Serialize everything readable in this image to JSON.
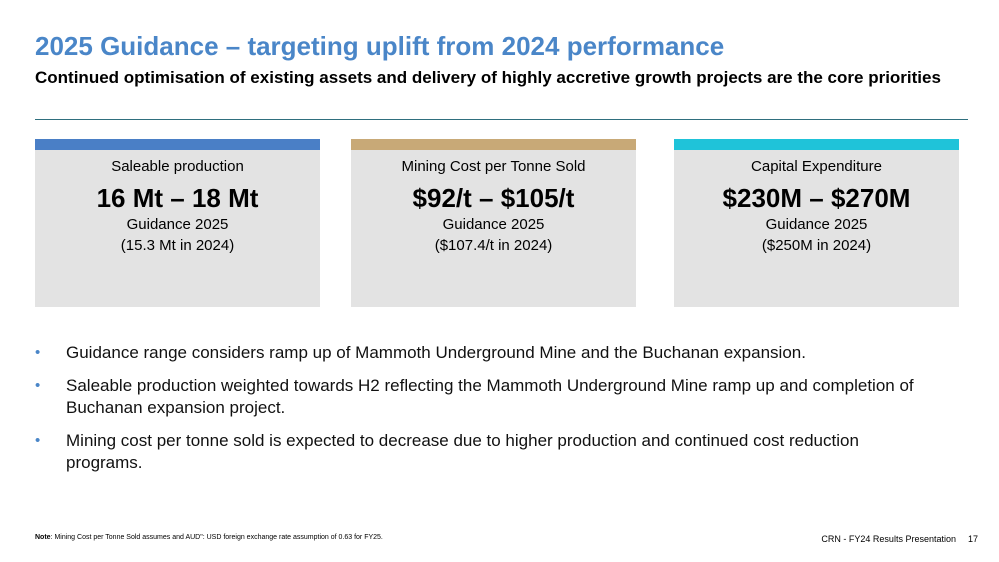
{
  "header": {
    "title": "2025 Guidance – targeting uplift from 2024 performance",
    "subtitle": "Continued optimisation of existing assets and delivery of highly accretive growth projects are the core priorities"
  },
  "cards": [
    {
      "label": "Saleable production",
      "value": "16 Mt – 18 Mt",
      "guidance": "Guidance 2025",
      "previous": "(15.3 Mt in 2024)",
      "accent": "#4a7fc6"
    },
    {
      "label": "Mining Cost per Tonne Sold",
      "value": "$92/t – $105/t",
      "guidance": "Guidance 2025",
      "previous": "($107.4/t in 2024)",
      "accent": "#c8a977"
    },
    {
      "label": "Capital Expenditure",
      "value": "$230M – $270M",
      "guidance": "Guidance 2025",
      "previous": "($250M in 2024)",
      "accent": "#1fc3d9"
    }
  ],
  "bullets": [
    "Guidance range considers ramp up of Mammoth Underground Mine and the Buchanan expansion.",
    "Saleable production weighted towards H2 reflecting the Mammoth Underground Mine ramp up and completion of Buchanan expansion project.",
    "Mining cost per tonne sold is expected to decrease due to higher production and continued cost reduction programs."
  ],
  "bullet_marker": "•",
  "note": {
    "label": "Note",
    "text": ": Mining Cost per Tonne Sold assumes and AUD\": USD foreign exchange rate assumption of 0.63 for FY25."
  },
  "footer": {
    "presentation": "CRN - FY24 Results Presentation",
    "page": "17"
  },
  "colors": {
    "title": "#4a86c8",
    "rule": "#2f6f7e",
    "card_background": "#e3e3e3"
  }
}
